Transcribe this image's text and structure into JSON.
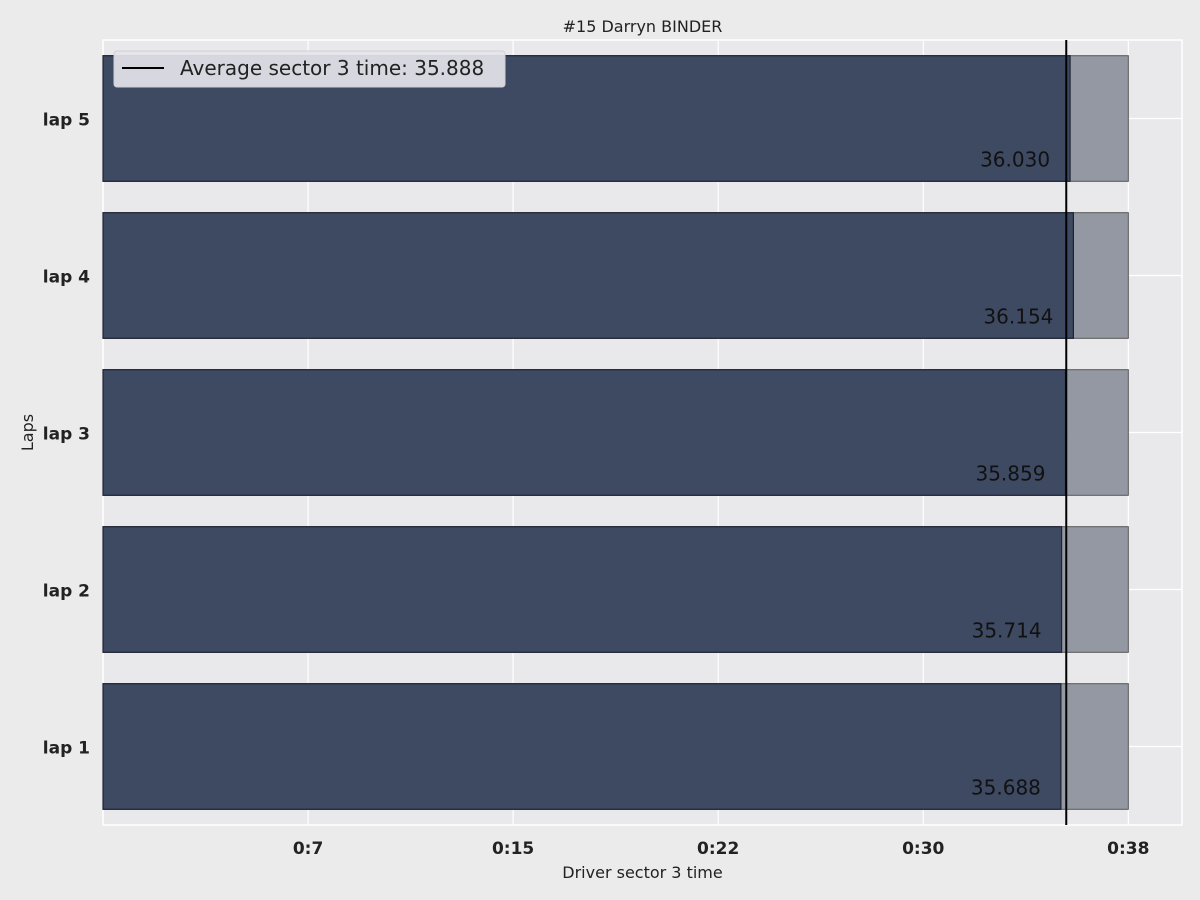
{
  "chart_data": {
    "type": "bar",
    "orientation": "horizontal",
    "title": "#15  Darryn BINDER",
    "xlabel": "Driver sector 3 time",
    "ylabel": "Laps",
    "categories": [
      "lap 1",
      "lap 2",
      "lap 3",
      "lap 4",
      "lap 5"
    ],
    "series": [
      {
        "values": [
          35.688,
          35.714,
          35.859,
          36.154,
          36.03
        ]
      }
    ],
    "value_labels": [
      "35.688",
      "35.714",
      "35.859",
      "36.154",
      "36.030"
    ],
    "background_bar_value": 38.2,
    "xlim": [
      0,
      40.2
    ],
    "xticks": [
      7.64,
      15.28,
      22.92,
      30.56,
      38.2
    ],
    "xtick_labels": [
      "0:7",
      "0:15",
      "0:22",
      "0:30",
      "0:38"
    ],
    "reference_line": {
      "value": 35.888,
      "label": "Average sector 3 time: 35.888"
    },
    "legend_position": "top-left",
    "grid": true,
    "colors": {
      "bar": "#3b4660",
      "background_bar": "#8e939e",
      "reference_line": "#000000",
      "plot_bg": "#e9e9ec",
      "grid": "#ffffff"
    }
  }
}
